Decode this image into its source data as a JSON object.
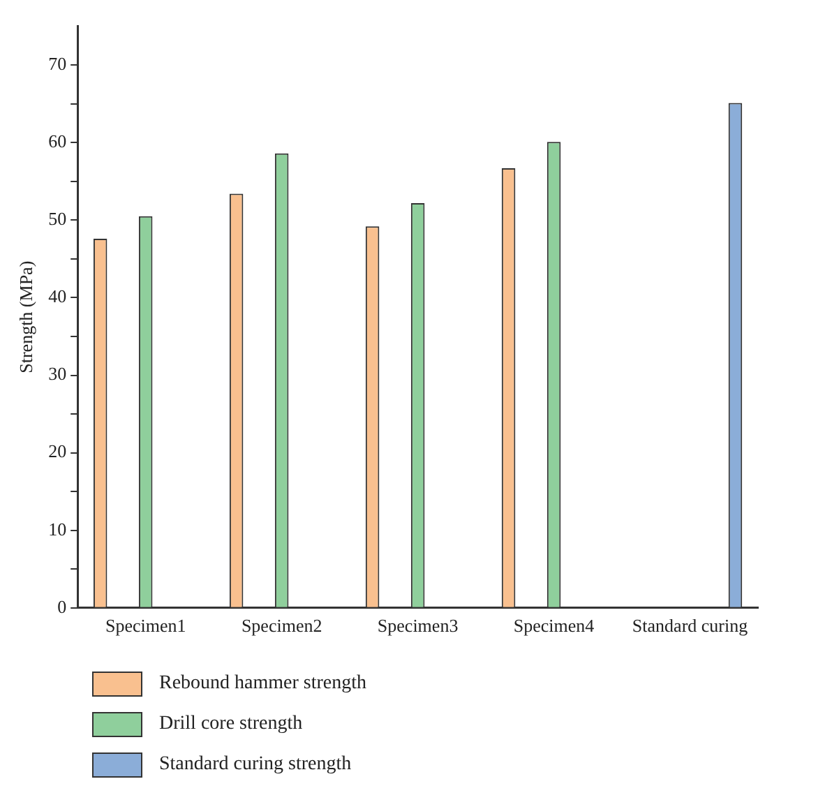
{
  "chart_data": {
    "type": "bar",
    "ylabel": "Strength (MPa)",
    "categories": [
      "Specimen1",
      "Specimen2",
      "Specimen3",
      "Specimen4",
      "Standard curing"
    ],
    "series": [
      {
        "name": "Rebound hammer strength",
        "color": "#f9c08f",
        "values": [
          47.6,
          53.4,
          49.2,
          56.7,
          null
        ]
      },
      {
        "name": "Drill core strength",
        "color": "#8fcf9c",
        "values": [
          50.5,
          58.6,
          52.2,
          60.1,
          null
        ]
      },
      {
        "name": "Standard curing strength",
        "color": "#8badd8",
        "values": [
          null,
          null,
          null,
          null,
          65.1
        ]
      }
    ],
    "ylim": [
      0,
      75
    ],
    "yticks": [
      0,
      {
        "value": 5,
        "label": null
      },
      10,
      {
        "value": 15,
        "label": null
      },
      20,
      {
        "value": 25,
        "label": null
      },
      30,
      {
        "value": 35,
        "label": null
      },
      40,
      {
        "value": 45,
        "label": null
      },
      50,
      {
        "value": 55,
        "label": null
      },
      60,
      {
        "value": 65,
        "label": null
      },
      70
    ],
    "grid": false,
    "legend": "bottom"
  }
}
